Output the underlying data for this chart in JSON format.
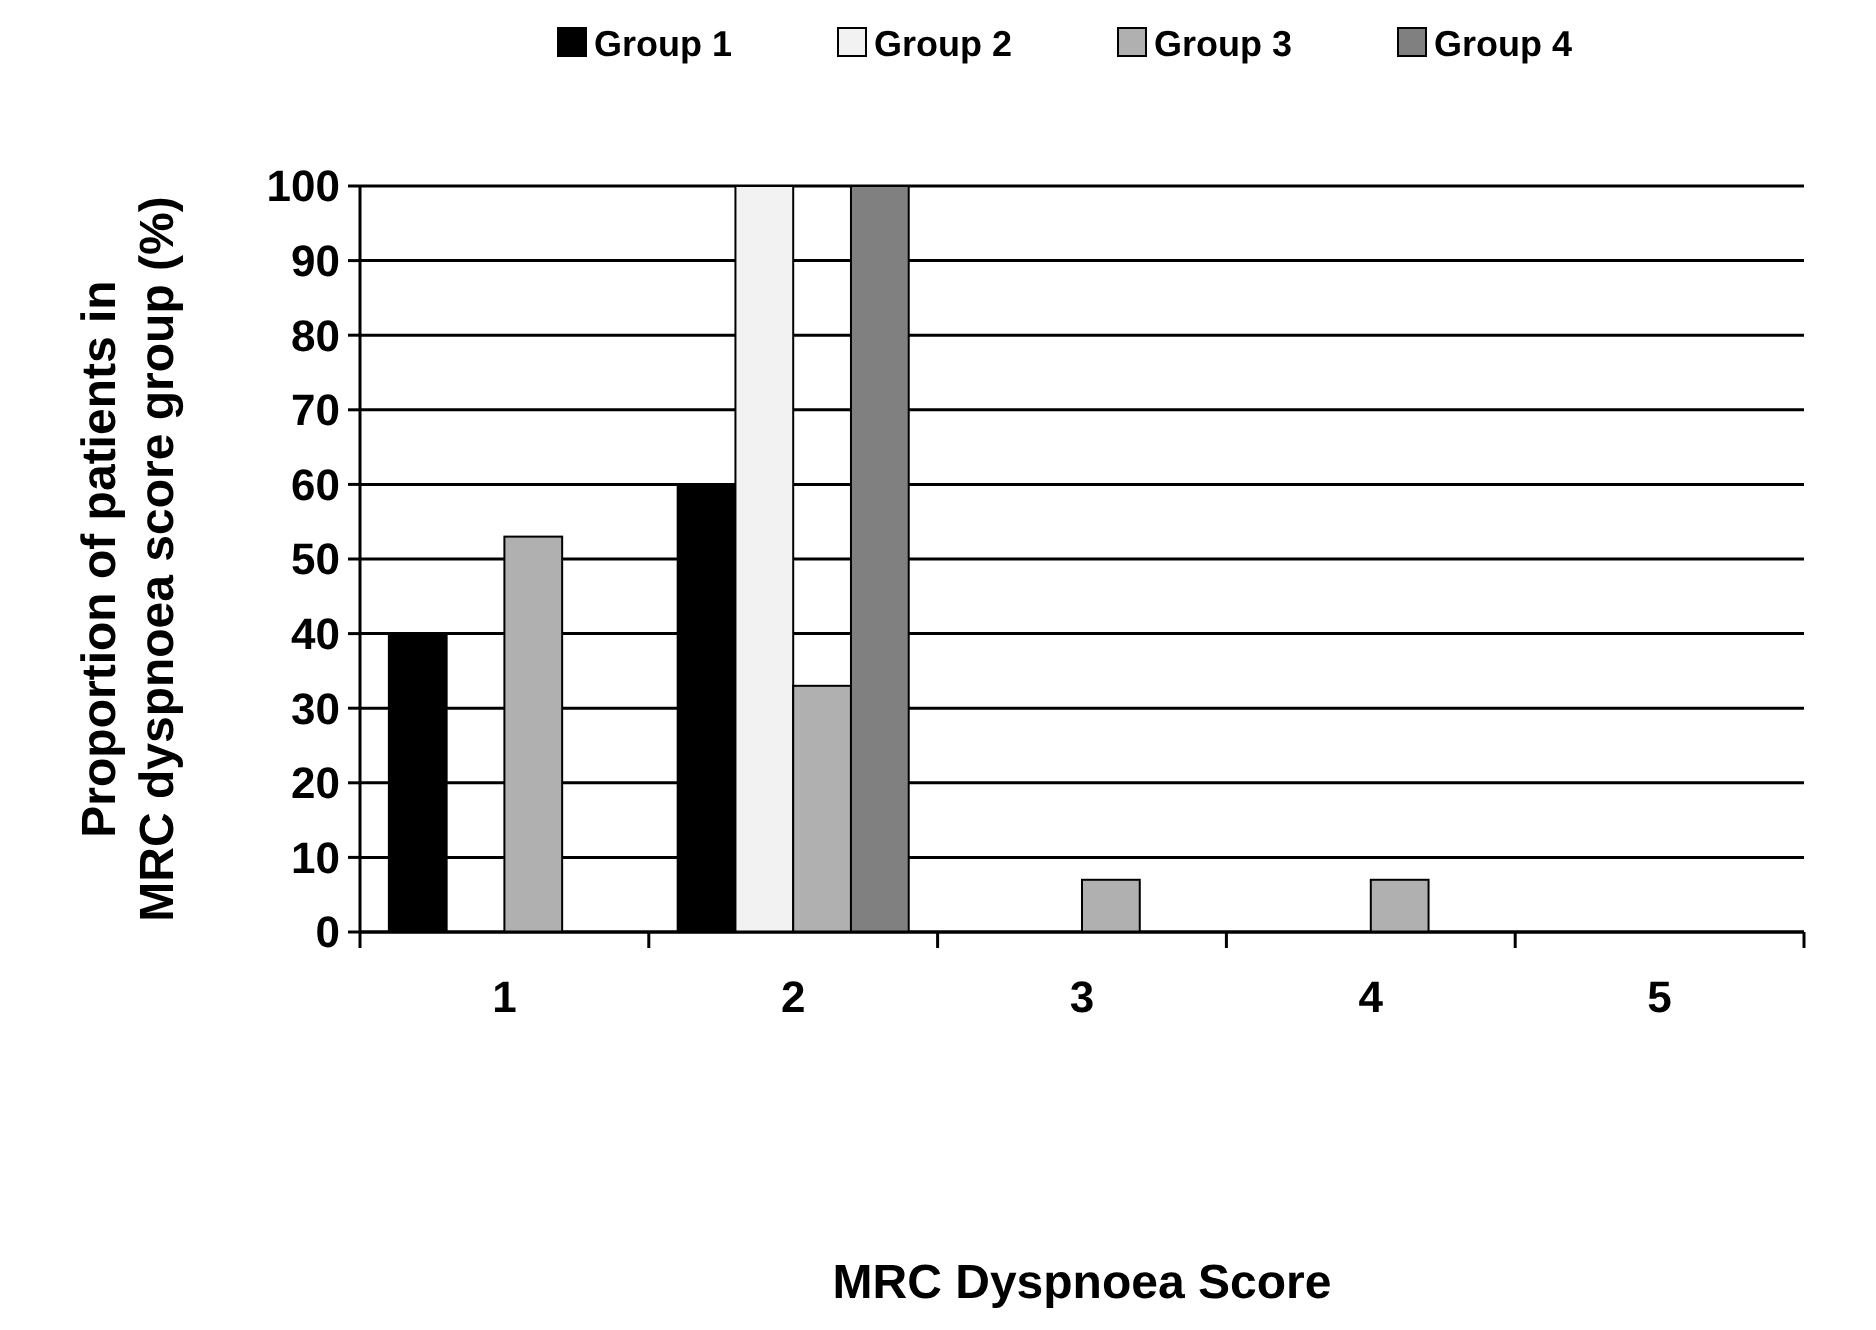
{
  "chart_data": {
    "type": "bar",
    "xlabel": "MRC Dyspnoea Score",
    "ylabel": "Proportion of patients in MRC dyspnoea score group (%)",
    "categories": [
      "1",
      "2",
      "3",
      "4",
      "5"
    ],
    "series": [
      {
        "name": "Group 1",
        "color": "#000000",
        "values": [
          40,
          60,
          0,
          0,
          0
        ]
      },
      {
        "name": "Group 2",
        "color": "#f2f2f2",
        "values": [
          0,
          100,
          0,
          0,
          0
        ]
      },
      {
        "name": "Group 3",
        "color": "#b0b0b0",
        "values": [
          53,
          33,
          7,
          7,
          0
        ]
      },
      {
        "name": "Group 4",
        "color": "#808080",
        "values": [
          0,
          100,
          0,
          0,
          0
        ]
      }
    ],
    "ylim": [
      0,
      100
    ],
    "yticks": [
      0,
      10,
      20,
      30,
      40,
      50,
      60,
      70,
      80,
      90,
      100
    ],
    "grid": "y",
    "legend": "top"
  }
}
